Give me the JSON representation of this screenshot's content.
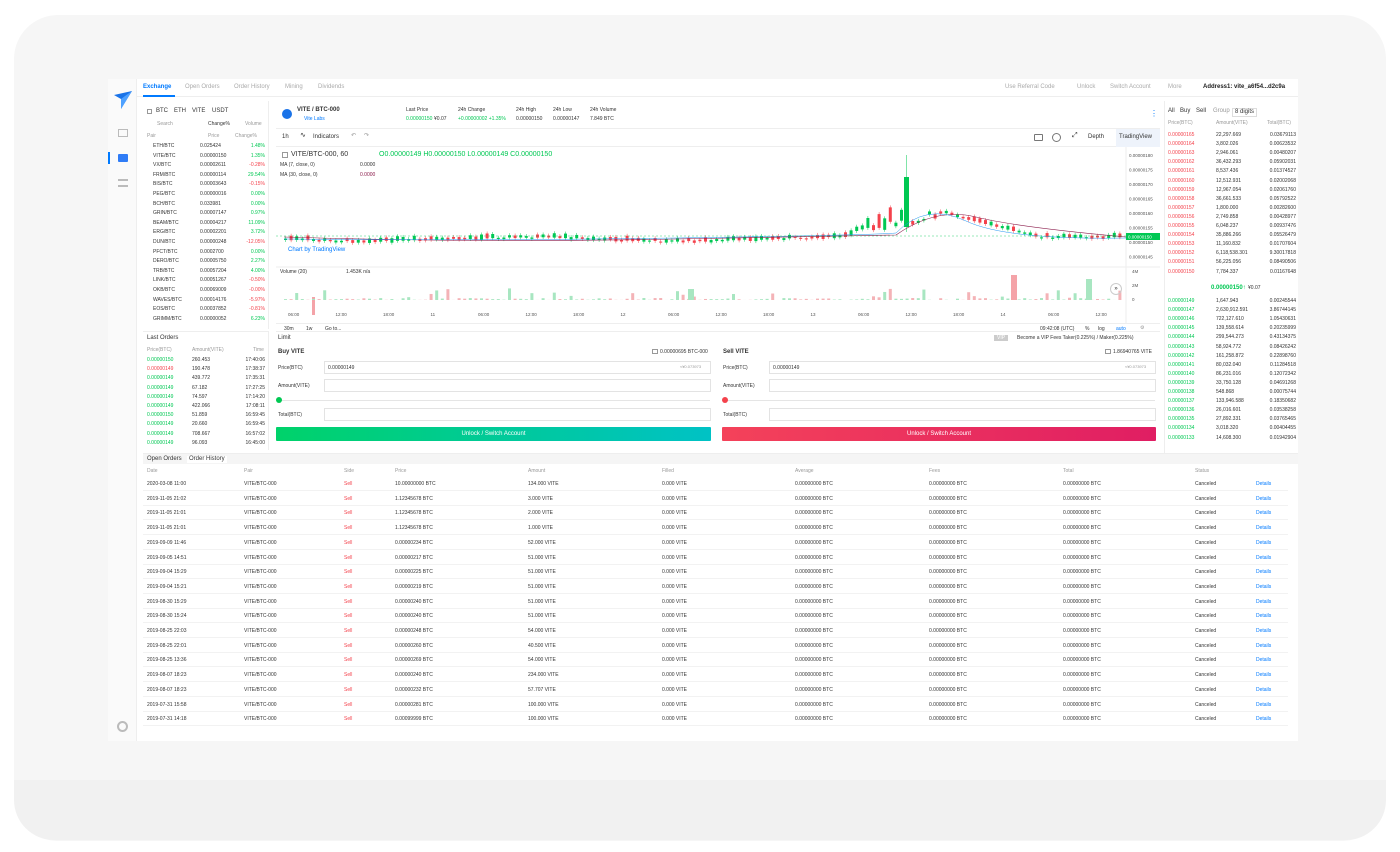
{
  "nav": {
    "tabs": [
      "Exchange",
      "Open Orders",
      "Order History",
      "Mining",
      "Dividends"
    ],
    "right": [
      "Use Referral Code",
      "Unlock",
      "Switch Account",
      "More"
    ],
    "address": "Address1: vite_a6f54...d2c9a"
  },
  "market": {
    "quote_tabs": [
      "BTC",
      "ETH",
      "VITE",
      "USDT"
    ],
    "search_placeholder": "Search",
    "sort_options": [
      "Change%",
      "Volume"
    ],
    "headers": [
      "Pair",
      "Price",
      "Change%"
    ],
    "pairs": [
      {
        "pair": "ETH/BTC",
        "price": "0.025424",
        "change": "1.48%",
        "dir": "g"
      },
      {
        "pair": "VITE/BTC",
        "price": "0.00000150",
        "change": "1.35%",
        "dir": "g"
      },
      {
        "pair": "VX/BTC",
        "price": "0.00002611",
        "change": "-0.28%",
        "dir": "r"
      },
      {
        "pair": "FRM/BTC",
        "price": "0.00000114",
        "change": "29.54%",
        "dir": "g"
      },
      {
        "pair": "BIS/BTC",
        "price": "0.00003643",
        "change": "-0.15%",
        "dir": "r"
      },
      {
        "pair": "PEG/BTC",
        "price": "0.00000016",
        "change": "0.00%",
        "dir": "g"
      },
      {
        "pair": "BCH/BTC",
        "price": "0.033981",
        "change": "0.00%",
        "dir": "g"
      },
      {
        "pair": "GRIN/BTC",
        "price": "0.00007147",
        "change": "0.97%",
        "dir": "g"
      },
      {
        "pair": "BEAM/BTC",
        "price": "0.00004217",
        "change": "11.09%",
        "dir": "g"
      },
      {
        "pair": "ERG/BTC",
        "price": "0.00002201",
        "change": "3.72%",
        "dir": "g"
      },
      {
        "pair": "DUN/BTC",
        "price": "0.00000248",
        "change": "-12.05%",
        "dir": "r"
      },
      {
        "pair": "PFCT/BTC",
        "price": "0.0002700",
        "change": "0.00%",
        "dir": "g"
      },
      {
        "pair": "DERO/BTC",
        "price": "0.00005750",
        "change": "2.27%",
        "dir": "g"
      },
      {
        "pair": "TRB/BTC",
        "price": "0.00057204",
        "change": "4.00%",
        "dir": "g"
      },
      {
        "pair": "LINK/BTC",
        "price": "0.00051267",
        "change": "-0.50%",
        "dir": "r"
      },
      {
        "pair": "OKB/BTC",
        "price": "0.00069009",
        "change": "-0.00%",
        "dir": "r"
      },
      {
        "pair": "WAVES/BTC",
        "price": "0.00014176",
        "change": "-5.97%",
        "dir": "r"
      },
      {
        "pair": "EOS/BTC",
        "price": "0.00037852",
        "change": "-0.81%",
        "dir": "r"
      },
      {
        "pair": "GRIMM/BTC",
        "price": "0.00000052",
        "change": "6.23%",
        "dir": "g"
      }
    ]
  },
  "ticker": {
    "pair": "VITE / BTC-000",
    "issuer": "Vite Labs",
    "last_price_label": "Last Price",
    "last_price": "0.00000150",
    "last_price_fiat": "¥0.07",
    "change_label": "24h Change",
    "change": "+0.00000002 +1.35%",
    "high_label": "24h High",
    "high": "0.00000150",
    "low_label": "24h Low",
    "low": "0.00000147",
    "vol_label": "24h Volume",
    "vol": "7.849 BTC"
  },
  "chart": {
    "interval": "1h",
    "indicators_label": "Indicators",
    "depth_label": "Depth",
    "tv_label": "TradingView",
    "title": "VITE/BTC-000, 60",
    "ohlc": "O0.00000149 H0.00000150 L0.00000149 C0.00000150",
    "ma7": "MA (7, close, 0)",
    "ma7_val": "0.0000",
    "ma30": "MA (30, close, 0)",
    "ma30_val": "0.0000",
    "credit": "Chart by TradingView",
    "volume_label": "Volume (20)",
    "volume_val": "1.453K  n/a",
    "y_ticks": [
      "0.00000180",
      "0.00000175",
      "0.00000170",
      "0.00000165",
      "0.00000160",
      "0.00000155",
      "0.00000150",
      "0.00000145"
    ],
    "vol_ticks": [
      "4M",
      "2M",
      "0"
    ],
    "x_ticks": [
      "06:00",
      "12:00",
      "18:00",
      "11",
      "06:00",
      "12:00",
      "18:00",
      "12",
      "06:00",
      "12:00",
      "18:00",
      "13",
      "06:00",
      "12:00",
      "18:00",
      "14",
      "06:00",
      "12:00"
    ],
    "bottom_left": [
      "30m",
      "1w",
      "Go to..."
    ],
    "bottom_right": [
      "09:42:08 (UTC)",
      "%",
      "log",
      "auto"
    ]
  },
  "last_orders": {
    "title": "Last Orders",
    "headers": [
      "Price(BTC)",
      "Amount(VITE)",
      "Time"
    ],
    "rows": [
      [
        "0.00000150",
        "260.453",
        "17:40:06",
        "g"
      ],
      [
        "0.00000149",
        "190.478",
        "17:38:37",
        "r"
      ],
      [
        "0.00000149",
        "439.772",
        "17:35:31",
        "g"
      ],
      [
        "0.00000149",
        "67.182",
        "17:27:25",
        "g"
      ],
      [
        "0.00000149",
        "74.597",
        "17:14:20",
        "g"
      ],
      [
        "0.00000149",
        "422.066",
        "17:08:11",
        "g"
      ],
      [
        "0.00000150",
        "51.859",
        "16:59:45",
        "g"
      ],
      [
        "0.00000149",
        "20.660",
        "16:59:45",
        "g"
      ],
      [
        "0.00000149",
        "708.667",
        "16:57:02",
        "g"
      ],
      [
        "0.00000149",
        "96.093",
        "16:45:00",
        "g"
      ]
    ]
  },
  "limit": {
    "title": "Limit",
    "vip": "VIP",
    "vip_text": "Become a VIP  Fees Taker(0.225%) / Maker(0.225%)",
    "buy": {
      "title": "Buy VITE",
      "balance": "0.00000695 BTC-000",
      "price_label": "Price(BTC)",
      "price": "0.00000149",
      "price_fiat": "≈¥0.073973",
      "amount_label": "Amount(VITE)",
      "total_label": "Total(BTC)",
      "btn": "Unlock / Switch Account"
    },
    "sell": {
      "title": "Sell VITE",
      "balance": "1.86940765 VITE",
      "price_label": "Price(BTC)",
      "price": "0.00000149",
      "price_fiat": "≈¥0.073973",
      "amount_label": "Amount(VITE)",
      "total_label": "Total(BTC)",
      "btn": "Unlock / Switch Account"
    }
  },
  "orderbook": {
    "tabs": [
      "All",
      "Buy",
      "Sell"
    ],
    "group_label": "Group",
    "group_val": "8 digits",
    "headers": [
      "Price(BTC)",
      "Amount(VITE)",
      "Total(BTC)"
    ],
    "asks": [
      [
        "0.00000165",
        "22,297.669",
        "0.03679113"
      ],
      [
        "0.00000164",
        "3,802.026",
        "0.00623532"
      ],
      [
        "0.00000163",
        "2,946.061",
        "0.00480207"
      ],
      [
        "0.00000162",
        "36,432.293",
        "0.05902031"
      ],
      [
        "0.00000161",
        "8,537.436",
        "0.01374527"
      ],
      [
        "0.00000160",
        "12,512.931",
        "0.02002068"
      ],
      [
        "0.00000159",
        "12,967.054",
        "0.02061760"
      ],
      [
        "0.00000158",
        "36,661.533",
        "0.05792522"
      ],
      [
        "0.00000157",
        "1,800.000",
        "0.00282600"
      ],
      [
        "0.00000156",
        "2,749.858",
        "0.00428977"
      ],
      [
        "0.00000155",
        "6,048.237",
        "0.00937476"
      ],
      [
        "0.00000154",
        "35,886.266",
        "0.05526479"
      ],
      [
        "0.00000153",
        "11,160.832",
        "0.01707604"
      ],
      [
        "0.00000152",
        "6,118,538.301",
        "9.30017818"
      ],
      [
        "0.00000151",
        "56,225.056",
        "0.08490506"
      ],
      [
        "0.00000150",
        "7,784.337",
        "0.01167648"
      ]
    ],
    "mid": "0.00000150↑",
    "mid_fiat": "¥0.07",
    "bids": [
      [
        "0.00000149",
        "1,647.943",
        "0.00245544"
      ],
      [
        "0.00000147",
        "2,630,912.591",
        "3.86744145"
      ],
      [
        "0.00000146",
        "722,127.610",
        "1.05430631"
      ],
      [
        "0.00000145",
        "139,558.614",
        "0.20235999"
      ],
      [
        "0.00000144",
        "299,544.273",
        "0.43134375"
      ],
      [
        "0.00000143",
        "58,924.772",
        "0.08426242"
      ],
      [
        "0.00000142",
        "161,258.872",
        "0.22898760"
      ],
      [
        "0.00000141",
        "80,032.040",
        "0.11284518"
      ],
      [
        "0.00000140",
        "86,231.016",
        "0.12072342"
      ],
      [
        "0.00000139",
        "33,750.128",
        "0.04691268"
      ],
      [
        "0.00000138",
        "548.868",
        "0.00075744"
      ],
      [
        "0.00000137",
        "133,946.588",
        "0.18350682"
      ],
      [
        "0.00000136",
        "26,016.601",
        "0.03538258"
      ],
      [
        "0.00000135",
        "27,892.331",
        "0.03765465"
      ],
      [
        "0.00000134",
        "3,018.320",
        "0.00404455"
      ],
      [
        "0.00000133",
        "14,608.300",
        "0.01942904"
      ]
    ]
  },
  "history": {
    "tabs": [
      "Open Orders",
      "Order History"
    ],
    "headers": [
      "Date",
      "Pair",
      "Side",
      "Price",
      "Amount",
      "Filled",
      "Average",
      "Fees",
      "Total",
      "Status"
    ],
    "rows": [
      [
        "2020-03-08 11:00",
        "VITE/BTC-000",
        "Sell",
        "10.00000000 BTC",
        "134.000 VITE",
        "0.000 VITE",
        "0.00000000 BTC",
        "0.00000000 BTC",
        "0.00000000 BTC",
        "Canceled",
        "Details"
      ],
      [
        "2019-11-05 21:02",
        "VITE/BTC-000",
        "Sell",
        "1.12345678 BTC",
        "3.000 VITE",
        "0.000 VITE",
        "0.00000000 BTC",
        "0.00000000 BTC",
        "0.00000000 BTC",
        "Canceled",
        "Details"
      ],
      [
        "2019-11-05 21:01",
        "VITE/BTC-000",
        "Sell",
        "1.12345678 BTC",
        "2.000 VITE",
        "0.000 VITE",
        "0.00000000 BTC",
        "0.00000000 BTC",
        "0.00000000 BTC",
        "Canceled",
        "Details"
      ],
      [
        "2019-11-05 21:01",
        "VITE/BTC-000",
        "Sell",
        "1.12345678 BTC",
        "1.000 VITE",
        "0.000 VITE",
        "0.00000000 BTC",
        "0.00000000 BTC",
        "0.00000000 BTC",
        "Canceled",
        "Details"
      ],
      [
        "2019-09-09 11:46",
        "VITE/BTC-000",
        "Sell",
        "0.00000234 BTC",
        "52.000 VITE",
        "0.000 VITE",
        "0.00000000 BTC",
        "0.00000000 BTC",
        "0.00000000 BTC",
        "Canceled",
        "Details"
      ],
      [
        "2019-09-05 14:51",
        "VITE/BTC-000",
        "Sell",
        "0.00000217 BTC",
        "51.000 VITE",
        "0.000 VITE",
        "0.00000000 BTC",
        "0.00000000 BTC",
        "0.00000000 BTC",
        "Canceled",
        "Details"
      ],
      [
        "2019-09-04 15:29",
        "VITE/BTC-000",
        "Sell",
        "0.00000225 BTC",
        "51.000 VITE",
        "0.000 VITE",
        "0.00000000 BTC",
        "0.00000000 BTC",
        "0.00000000 BTC",
        "Canceled",
        "Details"
      ],
      [
        "2019-09-04 15:21",
        "VITE/BTC-000",
        "Sell",
        "0.00000219 BTC",
        "51.000 VITE",
        "0.000 VITE",
        "0.00000000 BTC",
        "0.00000000 BTC",
        "0.00000000 BTC",
        "Canceled",
        "Details"
      ],
      [
        "2019-08-30 15:29",
        "VITE/BTC-000",
        "Sell",
        "0.00000240 BTC",
        "51.000 VITE",
        "0.000 VITE",
        "0.00000000 BTC",
        "0.00000000 BTC",
        "0.00000000 BTC",
        "Canceled",
        "Details"
      ],
      [
        "2019-08-30 15:24",
        "VITE/BTC-000",
        "Sell",
        "0.00000240 BTC",
        "51.000 VITE",
        "0.000 VITE",
        "0.00000000 BTC",
        "0.00000000 BTC",
        "0.00000000 BTC",
        "Canceled",
        "Details"
      ],
      [
        "2019-08-25 22:03",
        "VITE/BTC-000",
        "Sell",
        "0.00000248 BTC",
        "54.000 VITE",
        "0.000 VITE",
        "0.00000000 BTC",
        "0.00000000 BTC",
        "0.00000000 BTC",
        "Canceled",
        "Details"
      ],
      [
        "2019-08-25 22:01",
        "VITE/BTC-000",
        "Sell",
        "0.00000260 BTC",
        "40.500 VITE",
        "0.000 VITE",
        "0.00000000 BTC",
        "0.00000000 BTC",
        "0.00000000 BTC",
        "Canceled",
        "Details"
      ],
      [
        "2019-08-25 13:36",
        "VITE/BTC-000",
        "Sell",
        "0.00000269 BTC",
        "54.000 VITE",
        "0.000 VITE",
        "0.00000000 BTC",
        "0.00000000 BTC",
        "0.00000000 BTC",
        "Canceled",
        "Details"
      ],
      [
        "2019-08-07 18:23",
        "VITE/BTC-000",
        "Sell",
        "0.00000240 BTC",
        "234.000 VITE",
        "0.000 VITE",
        "0.00000000 BTC",
        "0.00000000 BTC",
        "0.00000000 BTC",
        "Canceled",
        "Details"
      ],
      [
        "2019-08-07 18:23",
        "VITE/BTC-000",
        "Sell",
        "0.00000232 BTC",
        "57.707 VITE",
        "0.000 VITE",
        "0.00000000 BTC",
        "0.00000000 BTC",
        "0.00000000 BTC",
        "Canceled",
        "Details"
      ],
      [
        "2019-07-31 15:58",
        "VITE/BTC-000",
        "Sell",
        "0.00000281 BTC",
        "100.000 VITE",
        "0.000 VITE",
        "0.00000000 BTC",
        "0.00000000 BTC",
        "0.00000000 BTC",
        "Canceled",
        "Details"
      ],
      [
        "2019-07-31 14:18",
        "VITE/BTC-000",
        "Sell",
        "0.00099999 BTC",
        "100.000 VITE",
        "0.000 VITE",
        "0.00000000 BTC",
        "0.00000000 BTC",
        "0.00000000 BTC",
        "Canceled",
        "Details"
      ]
    ]
  },
  "colors": {
    "accent": "#007aff",
    "buy": "#00c853",
    "sell": "#f4424c"
  }
}
